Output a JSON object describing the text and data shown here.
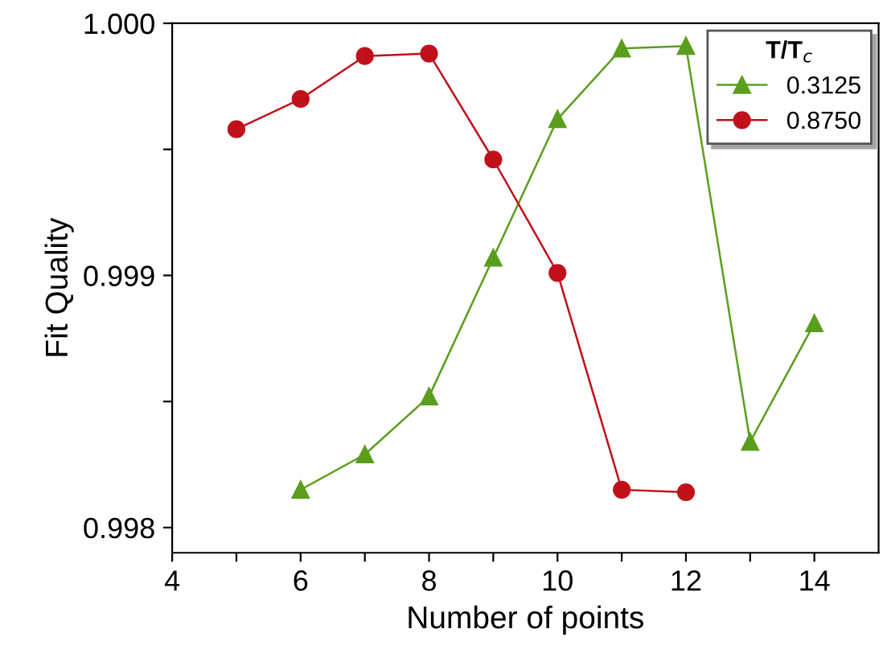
{
  "chart_data": {
    "type": "line",
    "xlabel": "Number of points",
    "ylabel": "Fit Quality",
    "legend_title": "T/T$_{c}$",
    "xlim": [
      4,
      15
    ],
    "xticks": [
      4,
      {
        "value": 5,
        "label": null
      },
      6,
      {
        "value": 7,
        "label": null
      },
      8,
      {
        "value": 9,
        "label": null
      },
      10,
      {
        "value": 11,
        "label": null
      },
      12,
      {
        "value": 13,
        "label": null
      },
      14
    ],
    "ylim": [
      0.9979,
      1.0
    ],
    "yticks": [
      {
        "value": 0.998,
        "label": "0.998"
      },
      {
        "value": 0.9985,
        "label": null
      },
      {
        "value": 0.999,
        "label": "0.999"
      },
      {
        "value": 0.9995,
        "label": null
      },
      {
        "value": 1.0,
        "label": "1.000"
      }
    ],
    "grid": false,
    "legend": "top right",
    "series": [
      {
        "name": "0.3125",
        "color": "#5a9e1e",
        "marker": "triangle",
        "x": [
          6,
          7,
          8,
          9,
          10,
          11,
          12,
          13,
          14
        ],
        "values": [
          0.99815,
          0.99829,
          0.99852,
          0.99907,
          0.99962,
          0.9999,
          0.99991,
          0.99834,
          0.99881
        ]
      },
      {
        "name": "0.8750",
        "color": "#c0101a",
        "marker": "circle",
        "x": [
          5,
          6,
          7,
          8,
          9,
          10,
          11,
          12
        ],
        "values": [
          0.99958,
          0.9997,
          0.99987,
          0.99988,
          0.99946,
          0.99901,
          0.99815,
          0.99814
        ]
      }
    ]
  }
}
